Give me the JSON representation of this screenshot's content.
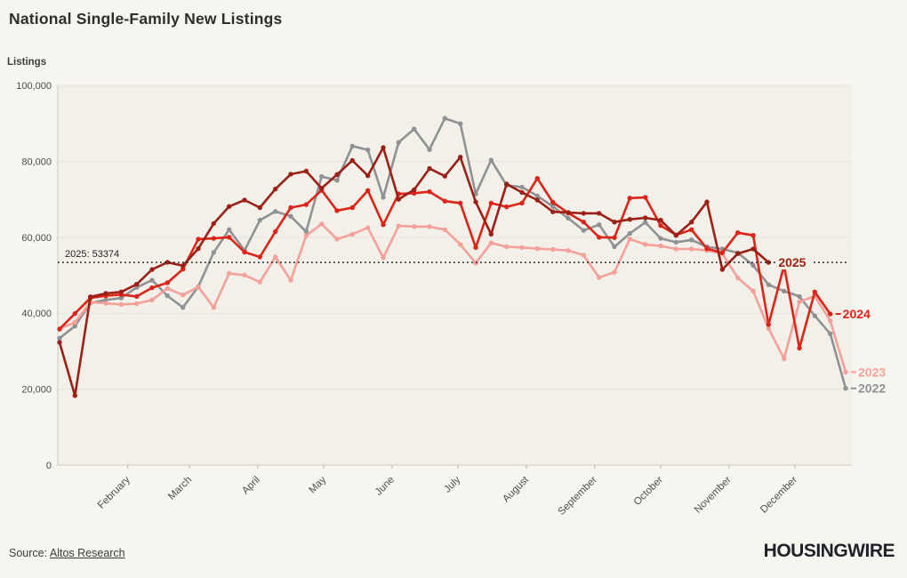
{
  "header": {
    "title": "National Single-Family New Listings",
    "y_axis_label": "Listings"
  },
  "footer": {
    "source_prefix": "Source: ",
    "source_link": "Altos Research",
    "logo": "HOUSINGWIRE"
  },
  "colors": {
    "page_bg": "#f7f5ef",
    "plot_bg": "#f2f0e9",
    "gridline": "#e7e5de",
    "axis": "#cfccc5",
    "tick_text": "#4a4a4a",
    "annotation_text": "#1f1f1f",
    "reference_line": "#1a1a1a"
  },
  "chart_data": {
    "type": "line",
    "title": "National Single-Family New Listings",
    "ylabel": "Listings",
    "ylim": [
      0,
      100000
    ],
    "grid": "horizontal",
    "legend_position": "end-of-line",
    "yticks": [
      {
        "value": 0,
        "label": "0"
      },
      {
        "value": 20000,
        "label": "20,000"
      },
      {
        "value": 40000,
        "label": "40,000"
      },
      {
        "value": 60000,
        "label": "60,000"
      },
      {
        "value": 80000,
        "label": "80,000"
      },
      {
        "value": 100000,
        "label": "100,000"
      }
    ],
    "x_unit": "week-of-year",
    "x_months": [
      {
        "label": "February",
        "day": 32
      },
      {
        "label": "March",
        "day": 60
      },
      {
        "label": "April",
        "day": 91
      },
      {
        "label": "May",
        "day": 121
      },
      {
        "label": "June",
        "day": 152
      },
      {
        "label": "July",
        "day": 182
      },
      {
        "label": "August",
        "day": 213
      },
      {
        "label": "September",
        "day": 244
      },
      {
        "label": "October",
        "day": 274
      },
      {
        "label": "November",
        "day": 305
      },
      {
        "label": "December",
        "day": 335
      }
    ],
    "annotation": {
      "label": "2025: 53374",
      "value": 53374
    },
    "series": [
      {
        "name": "2022",
        "color": "#8f9295",
        "values": [
          33400,
          36600,
          42700,
          43500,
          44000,
          46800,
          48700,
          44600,
          41500,
          47000,
          56000,
          62000,
          56500,
          64500,
          66800,
          65500,
          61500,
          76000,
          75000,
          84000,
          83000,
          70500,
          85000,
          88500,
          83100,
          91300,
          89900,
          71400,
          80300,
          73700,
          73200,
          70900,
          68100,
          65000,
          61800,
          63300,
          57500,
          61000,
          63900,
          59700,
          58700,
          59300,
          57500,
          56900,
          55900,
          52600,
          47500,
          45800,
          44400,
          39300,
          34600,
          20200
        ]
      },
      {
        "name": "2023",
        "color": "#f6a09a",
        "values": [
          35900,
          37600,
          42900,
          42600,
          42300,
          42500,
          43500,
          46500,
          44800,
          46900,
          41500,
          50500,
          50000,
          48200,
          54800,
          48700,
          60400,
          63500,
          59500,
          60800,
          62500,
          54600,
          63000,
          62800,
          62800,
          62000,
          58100,
          53200,
          58500,
          57500,
          57300,
          57000,
          56800,
          56500,
          55300,
          49400,
          50800,
          59500,
          58100,
          57700,
          56900,
          56900,
          56500,
          55700,
          49300,
          45800,
          36000,
          28000,
          43000,
          44500,
          38000,
          24500
        ]
      },
      {
        "name": "2024",
        "color": "#dc2418",
        "values": [
          35800,
          39900,
          44000,
          44600,
          44900,
          44400,
          46700,
          48000,
          51600,
          59500,
          59700,
          60000,
          56100,
          54800,
          61500,
          67800,
          68600,
          72400,
          67000,
          67800,
          72300,
          63300,
          71400,
          71600,
          72000,
          69500,
          69000,
          57300,
          69000,
          68000,
          69000,
          75500,
          69200,
          66400,
          64000,
          60000,
          59900,
          70300,
          70500,
          63100,
          60600,
          62000,
          57000,
          55900,
          61200,
          60500,
          37000,
          52500,
          30800,
          45600,
          39800
        ]
      },
      {
        "name": "2025",
        "color": "#9b2016",
        "end_label_on_line": true,
        "values": [
          32300,
          18300,
          44300,
          45200,
          45600,
          47600,
          51500,
          53400,
          52500,
          57000,
          63600,
          68100,
          69800,
          67800,
          72700,
          76600,
          77400,
          72900,
          76500,
          80200,
          76200,
          83600,
          70000,
          72500,
          78100,
          76100,
          81100,
          69300,
          60800,
          74000,
          71800,
          69800,
          66700,
          66500,
          66300,
          66300,
          64000,
          64700,
          65100,
          64500,
          60500,
          64000,
          69300,
          51500,
          55700,
          56900,
          53374
        ]
      }
    ]
  }
}
